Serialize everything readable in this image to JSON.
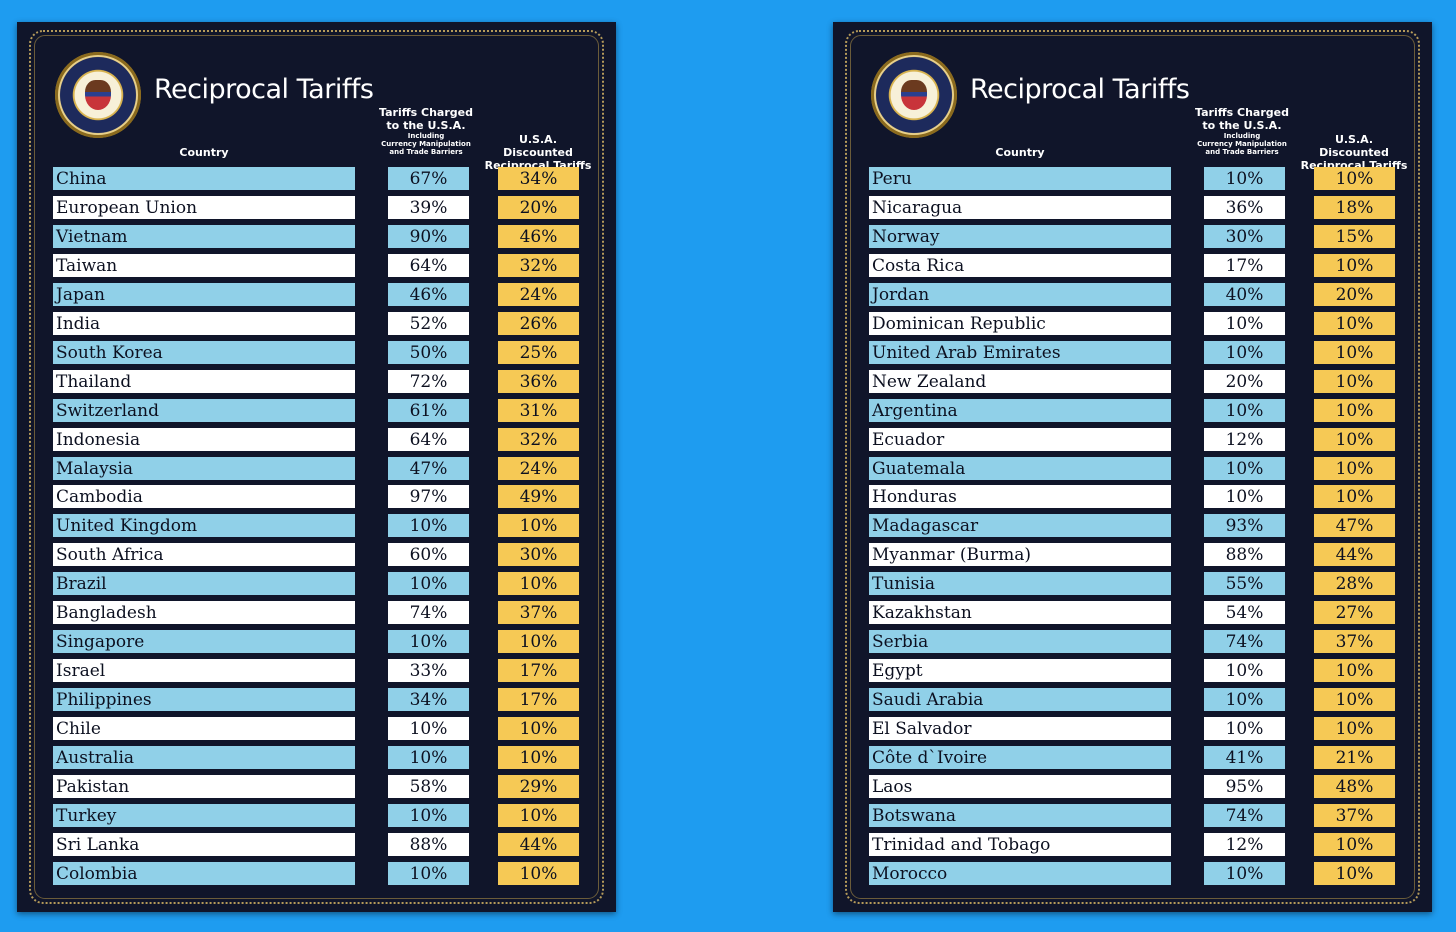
{
  "title": "Reciprocal Tariffs",
  "headers": {
    "country": "Country",
    "charged_line1": "Tariffs Charged",
    "charged_line2": "to the U.S.A.",
    "charged_line3": "Including",
    "charged_line4": "Currency Manipulation",
    "charged_line5": "and Trade Barriers",
    "discounted_line1": "U.S.A. Discounted",
    "discounted_line2": "Reciprocal Tariffs"
  },
  "left_rows": [
    {
      "country": "China",
      "charged": "67%",
      "discounted": "34%"
    },
    {
      "country": "European Union",
      "charged": "39%",
      "discounted": "20%"
    },
    {
      "country": "Vietnam",
      "charged": "90%",
      "discounted": "46%"
    },
    {
      "country": "Taiwan",
      "charged": "64%",
      "discounted": "32%"
    },
    {
      "country": "Japan",
      "charged": "46%",
      "discounted": "24%"
    },
    {
      "country": "India",
      "charged": "52%",
      "discounted": "26%"
    },
    {
      "country": "South Korea",
      "charged": "50%",
      "discounted": "25%"
    },
    {
      "country": "Thailand",
      "charged": "72%",
      "discounted": "36%"
    },
    {
      "country": "Switzerland",
      "charged": "61%",
      "discounted": "31%"
    },
    {
      "country": "Indonesia",
      "charged": "64%",
      "discounted": "32%"
    },
    {
      "country": "Malaysia",
      "charged": "47%",
      "discounted": "24%"
    },
    {
      "country": "Cambodia",
      "charged": "97%",
      "discounted": "49%"
    },
    {
      "country": "United Kingdom",
      "charged": "10%",
      "discounted": "10%"
    },
    {
      "country": "South Africa",
      "charged": "60%",
      "discounted": "30%"
    },
    {
      "country": "Brazil",
      "charged": "10%",
      "discounted": "10%"
    },
    {
      "country": "Bangladesh",
      "charged": "74%",
      "discounted": "37%"
    },
    {
      "country": "Singapore",
      "charged": "10%",
      "discounted": "10%"
    },
    {
      "country": "Israel",
      "charged": "33%",
      "discounted": "17%"
    },
    {
      "country": "Philippines",
      "charged": "34%",
      "discounted": "17%"
    },
    {
      "country": "Chile",
      "charged": "10%",
      "discounted": "10%"
    },
    {
      "country": "Australia",
      "charged": "10%",
      "discounted": "10%"
    },
    {
      "country": "Pakistan",
      "charged": "58%",
      "discounted": "29%"
    },
    {
      "country": "Turkey",
      "charged": "10%",
      "discounted": "10%"
    },
    {
      "country": "Sri Lanka",
      "charged": "88%",
      "discounted": "44%"
    },
    {
      "country": "Colombia",
      "charged": "10%",
      "discounted": "10%"
    }
  ],
  "right_rows": [
    {
      "country": "Peru",
      "charged": "10%",
      "discounted": "10%"
    },
    {
      "country": "Nicaragua",
      "charged": "36%",
      "discounted": "18%"
    },
    {
      "country": "Norway",
      "charged": "30%",
      "discounted": "15%"
    },
    {
      "country": "Costa Rica",
      "charged": "17%",
      "discounted": "10%"
    },
    {
      "country": "Jordan",
      "charged": "40%",
      "discounted": "20%"
    },
    {
      "country": "Dominican Republic",
      "charged": "10%",
      "discounted": "10%"
    },
    {
      "country": "United Arab Emirates",
      "charged": "10%",
      "discounted": "10%"
    },
    {
      "country": "New Zealand",
      "charged": "20%",
      "discounted": "10%"
    },
    {
      "country": "Argentina",
      "charged": "10%",
      "discounted": "10%"
    },
    {
      "country": "Ecuador",
      "charged": "12%",
      "discounted": "10%"
    },
    {
      "country": "Guatemala",
      "charged": "10%",
      "discounted": "10%"
    },
    {
      "country": "Honduras",
      "charged": "10%",
      "discounted": "10%"
    },
    {
      "country": "Madagascar",
      "charged": "93%",
      "discounted": "47%"
    },
    {
      "country": "Myanmar (Burma)",
      "charged": "88%",
      "discounted": "44%"
    },
    {
      "country": "Tunisia",
      "charged": "55%",
      "discounted": "28%"
    },
    {
      "country": "Kazakhstan",
      "charged": "54%",
      "discounted": "27%"
    },
    {
      "country": "Serbia",
      "charged": "74%",
      "discounted": "37%"
    },
    {
      "country": "Egypt",
      "charged": "10%",
      "discounted": "10%"
    },
    {
      "country": "Saudi Arabia",
      "charged": "10%",
      "discounted": "10%"
    },
    {
      "country": "El Salvador",
      "charged": "10%",
      "discounted": "10%"
    },
    {
      "country": "Côte d`Ivoire",
      "charged": "41%",
      "discounted": "21%"
    },
    {
      "country": "Laos",
      "charged": "95%",
      "discounted": "48%"
    },
    {
      "country": "Botswana",
      "charged": "74%",
      "discounted": "37%"
    },
    {
      "country": "Trinidad and Tobago",
      "charged": "12%",
      "discounted": "10%"
    },
    {
      "country": "Morocco",
      "charged": "10%",
      "discounted": "10%"
    }
  ],
  "colors": {
    "background": "#1e9cf0",
    "board": "#10152a",
    "row_blue": "#90d0e8",
    "row_white": "#ffffff",
    "discount": "#f6c955"
  }
}
